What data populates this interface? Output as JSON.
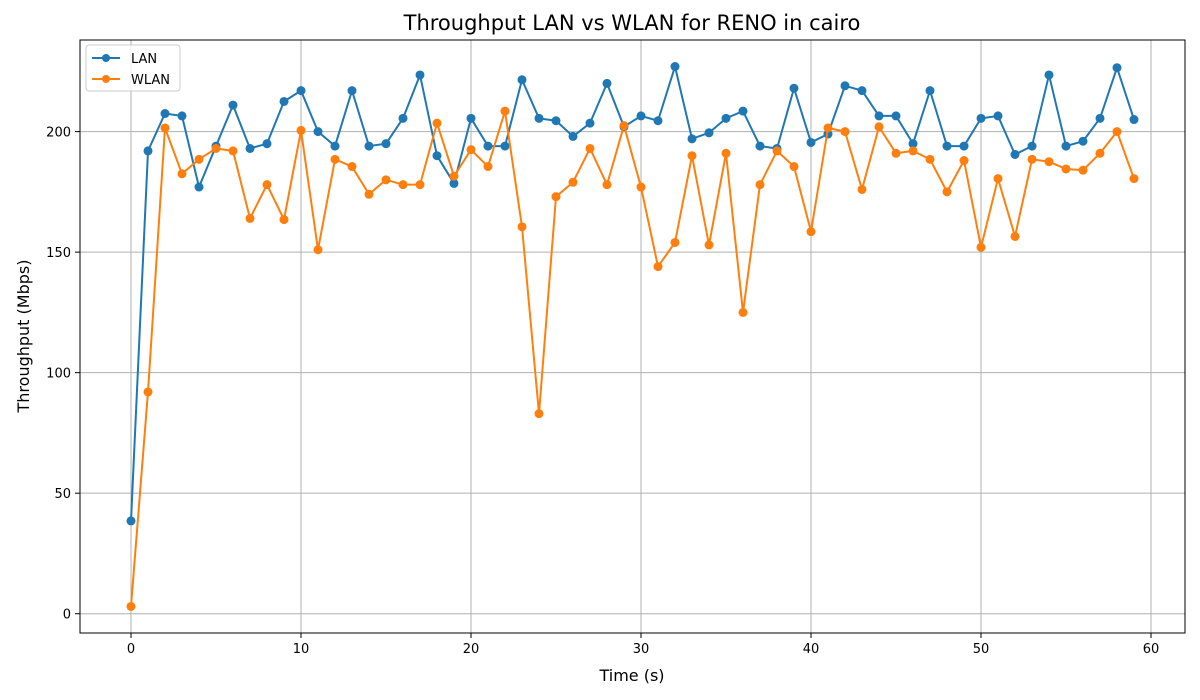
{
  "chart_data": {
    "type": "line",
    "title": "Throughput LAN vs WLAN for RENO in cairo",
    "xlabel": "Time (s)",
    "ylabel": "Throughput (Mbps)",
    "xlim": [
      -3,
      62
    ],
    "ylim": [
      -8,
      238
    ],
    "xticks": [
      0,
      10,
      20,
      30,
      40,
      50,
      60
    ],
    "yticks": [
      0,
      50,
      100,
      150,
      200
    ],
    "grid": true,
    "legend_position": "upper-left",
    "x": [
      0,
      1,
      2,
      3,
      4,
      5,
      6,
      7,
      8,
      9,
      10,
      11,
      12,
      13,
      14,
      15,
      16,
      17,
      18,
      19,
      20,
      21,
      22,
      23,
      24,
      25,
      26,
      27,
      28,
      29,
      30,
      31,
      32,
      33,
      34,
      35,
      36,
      37,
      38,
      39,
      40,
      41,
      42,
      43,
      44,
      45,
      46,
      47,
      48,
      49,
      50,
      51,
      52,
      53,
      54,
      55,
      56,
      57,
      58,
      59
    ],
    "series": [
      {
        "name": "LAN",
        "color": "#1f77b4",
        "values": [
          38.5,
          192,
          207.5,
          206.5,
          177,
          194,
          211,
          193,
          195,
          212.5,
          217,
          200,
          194,
          217,
          194,
          195,
          205.5,
          223.5,
          190,
          178.5,
          205.5,
          194,
          194,
          221.5,
          205.5,
          204.5,
          198,
          203.5,
          220,
          202,
          206.5,
          204.5,
          227,
          197,
          199.5,
          205.5,
          208.5,
          194,
          193,
          218,
          195.5,
          199,
          219,
          217,
          206.5,
          206.5,
          195,
          217,
          194,
          194,
          205.5,
          206.5,
          190.5,
          194,
          223.5,
          194,
          196,
          205.5,
          226.5,
          205
        ]
      },
      {
        "name": "WLAN",
        "color": "#ff7f0e",
        "values": [
          3,
          92,
          201.5,
          182.5,
          188.5,
          193,
          192,
          164,
          178,
          163.5,
          200.5,
          151,
          188.5,
          185.5,
          174,
          180,
          178,
          178,
          203.5,
          181.5,
          192.5,
          185.5,
          208.5,
          160.5,
          83,
          173,
          179,
          193,
          178,
          202.5,
          177,
          144,
          154,
          190,
          153,
          191,
          125,
          178,
          192,
          185.5,
          158.5,
          201.5,
          200,
          176,
          202,
          191,
          192,
          188.5,
          175,
          188,
          152,
          180.5,
          156.5,
          188.5,
          187.5,
          184.5,
          184,
          191,
          200,
          180.5
        ]
      }
    ]
  }
}
